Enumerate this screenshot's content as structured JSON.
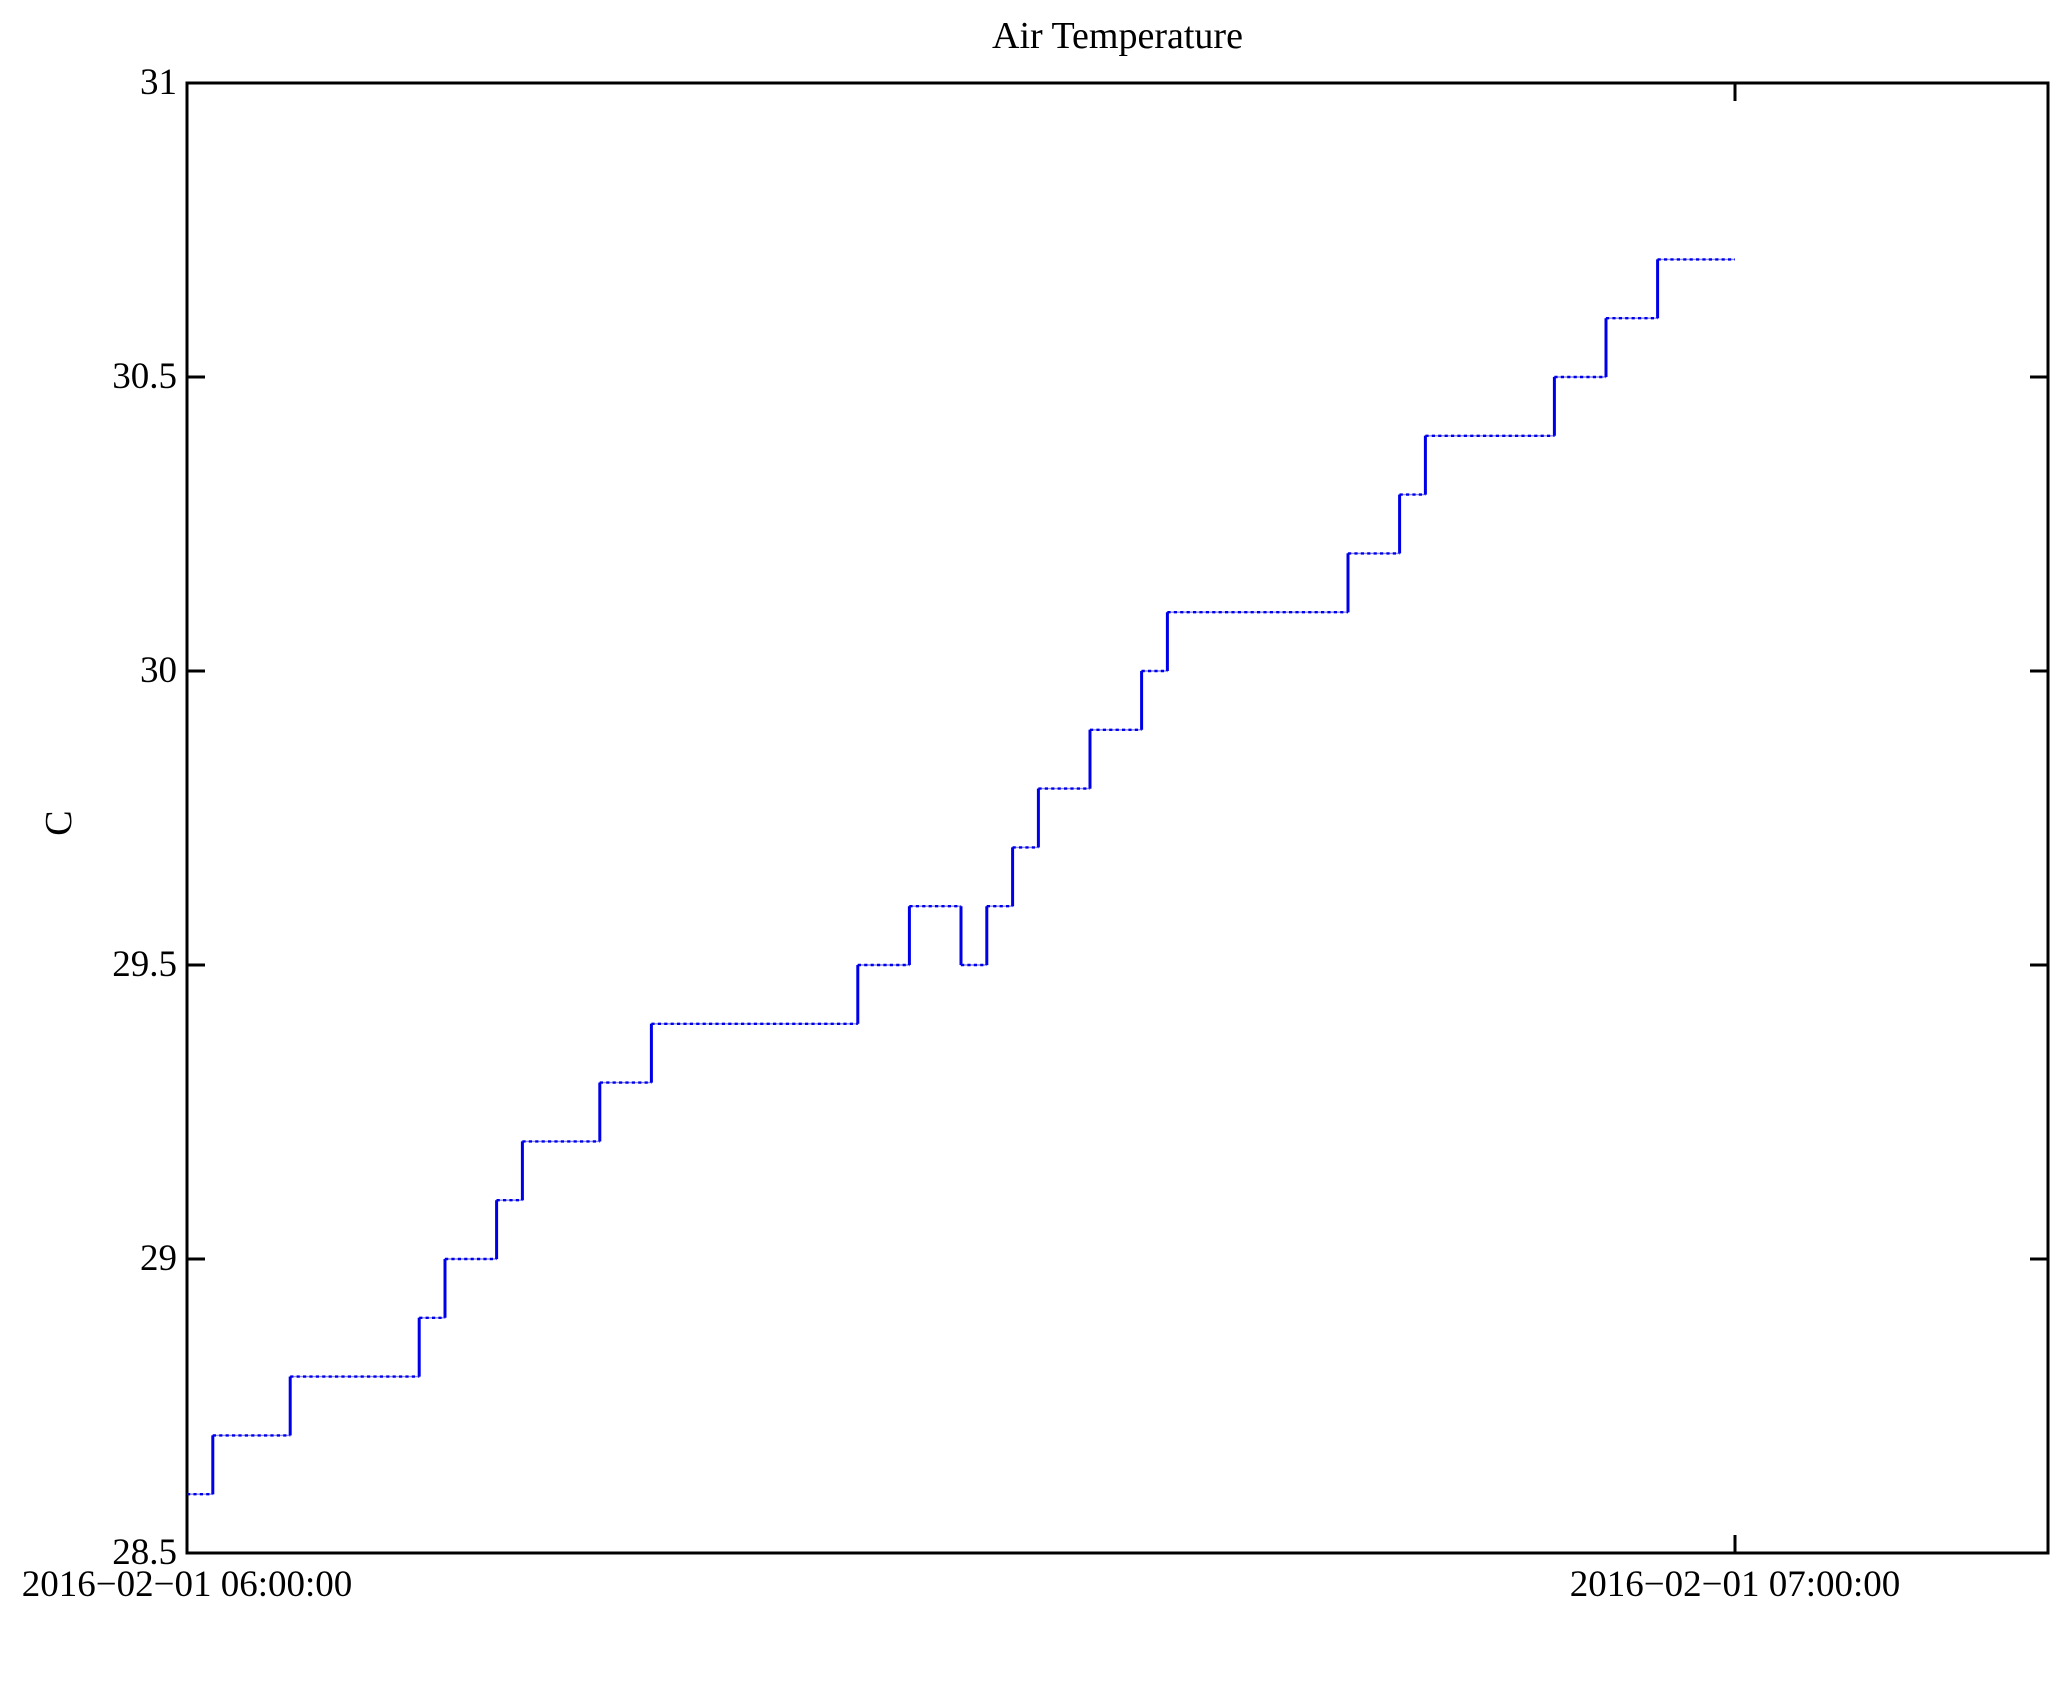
{
  "chart_data": {
    "type": "line",
    "step": true,
    "title": "Air Temperature",
    "ylabel": "C",
    "xlabel": "",
    "grid": false,
    "legend": null,
    "line_color": "#0000e8",
    "line_color_light": "#8a8aff",
    "axis_color": "#000000",
    "x_tick_labels": [
      "2016−02−01 06:00:00",
      "2016−02−01 07:00:00"
    ],
    "x_tick_minutes": [
      0,
      60
    ],
    "xlim_minutes": [
      0,
      72.1
    ],
    "y_ticks": [
      28.5,
      29,
      29.5,
      30,
      30.5,
      31
    ],
    "y_tick_labels": [
      "28.5",
      "29",
      "29.5",
      "30",
      "30.5",
      "31"
    ],
    "ylim": [
      28.5,
      31
    ],
    "x_start_time": "2016-02-01 06:00:00",
    "x_end_time": "2016-02-01 07:00:00",
    "minutes_after_start": [
      0,
      1,
      2,
      3,
      4,
      5,
      6,
      7,
      8,
      9,
      10,
      11,
      12,
      13,
      14,
      15,
      16,
      17,
      18,
      19,
      20,
      21,
      22,
      23,
      24,
      25,
      26,
      27,
      28,
      29,
      30,
      31,
      32,
      33,
      34,
      35,
      36,
      37,
      38,
      39,
      40,
      41,
      42,
      43,
      44,
      45,
      46,
      47,
      48,
      49,
      50,
      51,
      52,
      53,
      54,
      55,
      56,
      57,
      58,
      59,
      60
    ],
    "values": [
      28.6,
      28.7,
      28.7,
      28.7,
      28.8,
      28.8,
      28.8,
      28.8,
      28.8,
      28.9,
      29.0,
      29.0,
      29.1,
      29.2,
      29.2,
      29.2,
      29.3,
      29.3,
      29.4,
      29.4,
      29.4,
      29.4,
      29.4,
      29.4,
      29.4,
      29.4,
      29.5,
      29.5,
      29.6,
      29.6,
      29.5,
      29.6,
      29.7,
      29.8,
      29.8,
      29.9,
      29.9,
      30.0,
      30.1,
      30.1,
      30.1,
      30.1,
      30.1,
      30.1,
      30.1,
      30.2,
      30.2,
      30.3,
      30.4,
      30.4,
      30.4,
      30.4,
      30.4,
      30.5,
      30.5,
      30.6,
      30.6,
      30.7,
      30.7,
      30.7,
      30.7
    ]
  }
}
